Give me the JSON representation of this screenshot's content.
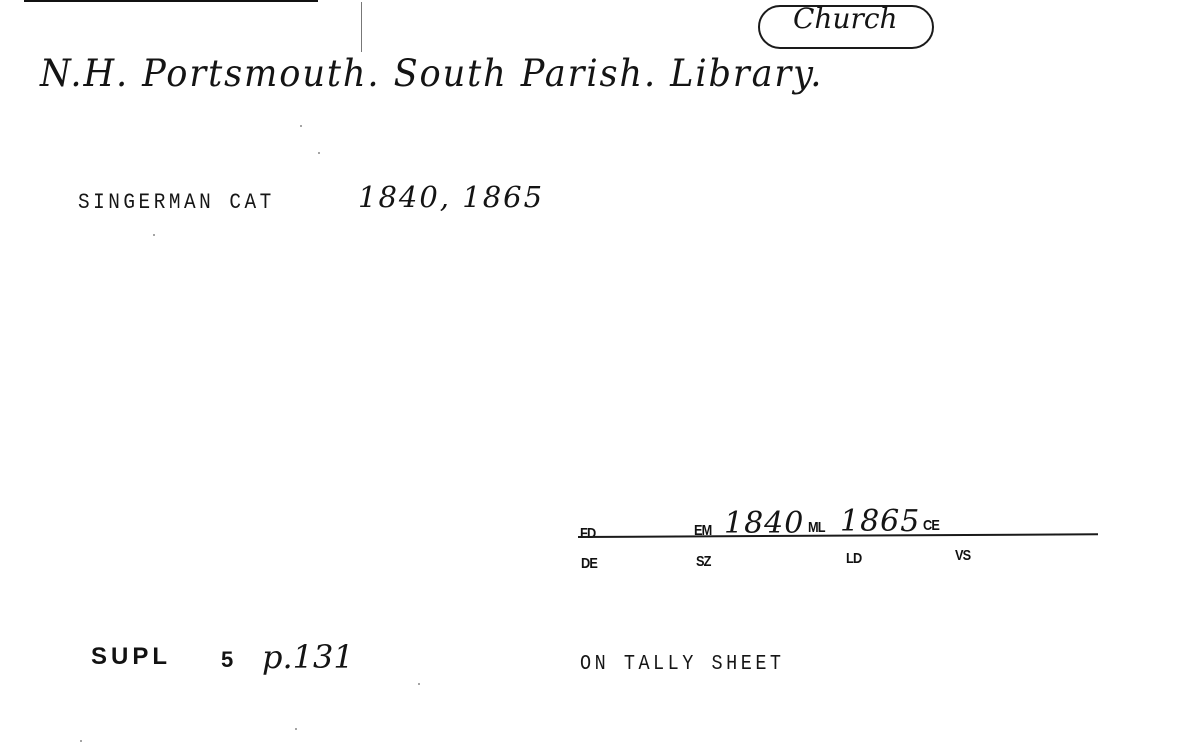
{
  "header": {
    "tag_label": "Church",
    "library_name": "N.H. Portsmouth. South Parish. Library."
  },
  "catalog": {
    "label": "SINGERMAN CAT",
    "years": "1840, 1865"
  },
  "form": {
    "fd_label": "FD",
    "em_label": "EM",
    "em_value": "1840",
    "ml_label": "ML",
    "ml_value": "1865",
    "ce_label": "CE",
    "de_label": "DE",
    "sz_label": "SZ",
    "ld_label": "LD",
    "vs_label": "VS"
  },
  "supplement": {
    "label": "SUPL",
    "number": "5",
    "handwritten": "p.131"
  },
  "tally_note": "ON TALLY SHEET"
}
